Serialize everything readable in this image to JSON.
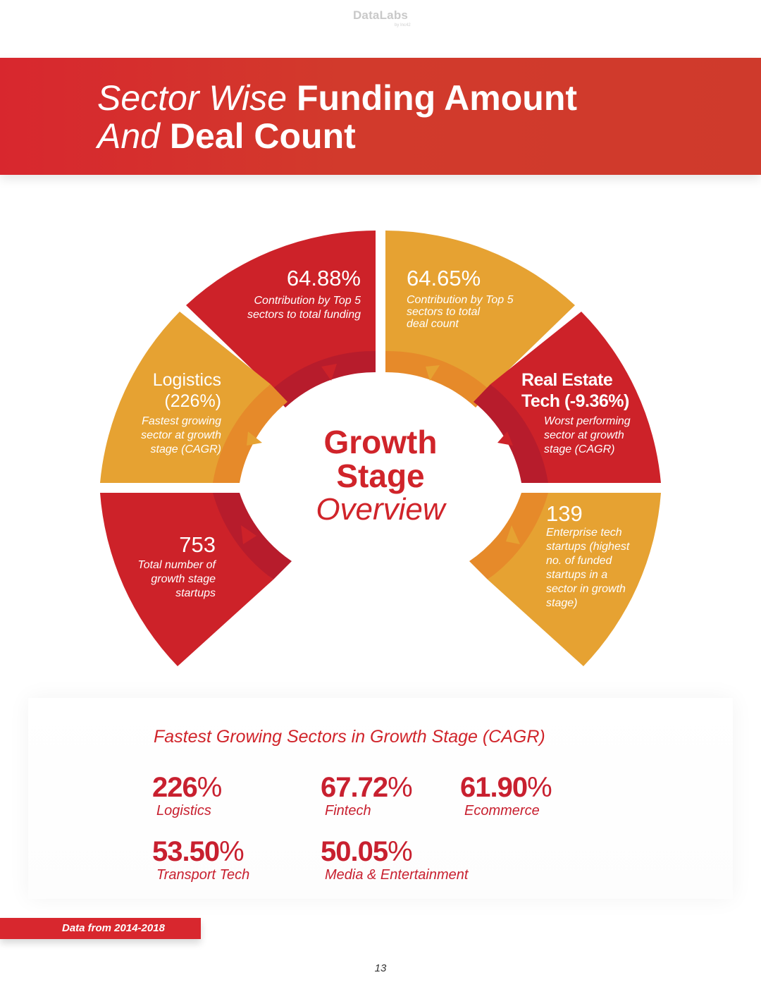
{
  "brand": {
    "name": "DataLabs",
    "sub": "by Inc42"
  },
  "header": {
    "title_line1_light": "Sector Wise",
    "title_line1_bold": "Funding Amount",
    "title_line2_light": "And",
    "title_line2_bold": "Deal Count"
  },
  "center": {
    "line1": "Growth",
    "line2": "Stage",
    "line3": "Overview"
  },
  "segments": {
    "funding": {
      "value": "64.88%",
      "desc1": "Contribution by Top 5",
      "desc2": "sectors to total funding"
    },
    "deals": {
      "value": "64.65%",
      "desc1": "Contribution by Top 5",
      "desc2": "sectors to total",
      "desc3": "deal count"
    },
    "logistics": {
      "name": "Logistics",
      "value": "(226%)",
      "desc1": "Fastest growing",
      "desc2": "sector at growth",
      "desc3": "stage (CAGR)"
    },
    "realestate": {
      "name1": "Real Estate",
      "name2": "Tech (-9.36%)",
      "desc1": "Worst performing",
      "desc2": "sector at growth",
      "desc3": "stage (CAGR)"
    },
    "startups": {
      "value": "753",
      "desc1": "Total number of",
      "desc2": "growth stage",
      "desc3": "startups"
    },
    "enterprise": {
      "value": "139",
      "desc1": "Enterprise tech",
      "desc2": "startups (highest",
      "desc3": "no. of funded",
      "desc4": "startups in a",
      "desc5": "sector in growth",
      "desc6": "stage)"
    }
  },
  "colors": {
    "red": "#d0242a",
    "dark_red": "#b71c2c",
    "yellow": "#e6a232",
    "orange": "#e68a2a"
  },
  "fastest": {
    "title": "Fastest Growing Sectors in Growth Stage (CAGR)",
    "items": [
      {
        "value": "226",
        "unit": "%",
        "label": "Logistics"
      },
      {
        "value": "67.72",
        "unit": "%",
        "label": "Fintech"
      },
      {
        "value": "61.90",
        "unit": "%",
        "label": "Ecommerce"
      },
      {
        "value": "53.50",
        "unit": "%",
        "label": "Transport Tech"
      },
      {
        "value": "50.05",
        "unit": "%",
        "label": "Media & Entertainment"
      }
    ]
  },
  "footer": {
    "note": "Data from 2014-2018",
    "page": "13"
  }
}
